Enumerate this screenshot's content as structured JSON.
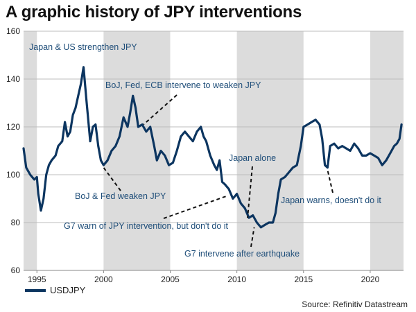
{
  "title": "A graphic history of JPY interventions",
  "source": "Source: Refinitiv Datastream",
  "colors": {
    "line": "#0c3560",
    "shade": "#dcdcdc",
    "annotation_text": "#1f4e79",
    "grid": "#bdbdbd"
  },
  "chart_data": {
    "type": "line",
    "title": "A graphic history of JPY interventions",
    "xlabel": "",
    "ylabel": "",
    "xlim": [
      1994.0,
      2022.5
    ],
    "ylim": [
      60,
      160
    ],
    "y_ticks": [
      60,
      80,
      100,
      120,
      140,
      160
    ],
    "x_ticks": [
      1995,
      2000,
      2005,
      2010,
      2015,
      2020
    ],
    "grid": "horizontal",
    "legend": "bottom-left",
    "shaded_periods": [
      [
        1994.0,
        1995.0
      ],
      [
        2000.0,
        2005.0
      ],
      [
        2010.0,
        2015.0
      ],
      [
        2020.0,
        2022.5
      ]
    ],
    "series": [
      {
        "name": "USDJPY",
        "x": [
          1994.0,
          1994.2,
          1994.5,
          1994.8,
          1995.0,
          1995.1,
          1995.3,
          1995.5,
          1995.7,
          1995.9,
          1996.1,
          1996.4,
          1996.6,
          1996.9,
          1997.1,
          1997.3,
          1997.5,
          1997.7,
          1997.9,
          1998.1,
          1998.3,
          1998.5,
          1998.7,
          1998.9,
          1999.0,
          1999.2,
          1999.4,
          1999.6,
          1999.8,
          2000.0,
          2000.3,
          2000.6,
          2000.9,
          2001.2,
          2001.5,
          2001.8,
          2002.0,
          2002.2,
          2002.4,
          2002.6,
          2002.9,
          2003.2,
          2003.5,
          2003.8,
          2004.0,
          2004.3,
          2004.6,
          2004.9,
          2005.2,
          2005.5,
          2005.8,
          2006.1,
          2006.4,
          2006.7,
          2007.0,
          2007.3,
          2007.5,
          2007.7,
          2008.0,
          2008.3,
          2008.5,
          2008.7,
          2008.9,
          2009.1,
          2009.4,
          2009.7,
          2010.0,
          2010.3,
          2010.6,
          2010.9,
          2011.2,
          2011.5,
          2011.8,
          2012.1,
          2012.4,
          2012.7,
          2012.9,
          2013.1,
          2013.3,
          2013.6,
          2013.9,
          2014.2,
          2014.5,
          2014.8,
          2015.0,
          2015.3,
          2015.6,
          2015.9,
          2016.2,
          2016.4,
          2016.6,
          2016.8,
          2017.0,
          2017.3,
          2017.6,
          2017.9,
          2018.2,
          2018.5,
          2018.8,
          2019.1,
          2019.4,
          2019.7,
          2020.0,
          2020.3,
          2020.6,
          2020.9,
          2021.2,
          2021.5,
          2021.8,
          2022.0,
          2022.2,
          2022.35
        ],
        "values": [
          111,
          103,
          100,
          98,
          99,
          92,
          85,
          90,
          100,
          104,
          106,
          108,
          112,
          114,
          122,
          116,
          118,
          125,
          128,
          133,
          138,
          145,
          132,
          120,
          114,
          120,
          121,
          112,
          106,
          104,
          106,
          110,
          112,
          116,
          124,
          120,
          126,
          133,
          128,
          120,
          121,
          118,
          120,
          112,
          106,
          110,
          108,
          104,
          105,
          110,
          116,
          118,
          116,
          114,
          118,
          120,
          116,
          114,
          108,
          104,
          102,
          106,
          97,
          96,
          94,
          90,
          92,
          88,
          86,
          82,
          83,
          80,
          78,
          79,
          80,
          80,
          84,
          92,
          98,
          99,
          101,
          103,
          104,
          112,
          120,
          121,
          122,
          123,
          121,
          115,
          104,
          103,
          112,
          113,
          111,
          112,
          111,
          110,
          113,
          111,
          108,
          108,
          109,
          108,
          107,
          104,
          106,
          109,
          112,
          113,
          115,
          121
        ]
      }
    ],
    "annotations": [
      {
        "text": "Japan & US strengthen JPY",
        "x": 1998.6,
        "y": 145
      },
      {
        "text": "BoJ, Fed, ECB intervene to weaken JPY",
        "x": 2003.0,
        "y": 121
      },
      {
        "text": "BoJ & Fed weaken JPY",
        "x": 2000.0,
        "y": 103
      },
      {
        "text": "G7 warn of JPY intervention, but don't do it",
        "x": 2009.2,
        "y": 91
      },
      {
        "text": "Japan alone",
        "x": 2010.8,
        "y": 82
      },
      {
        "text": "G7 intervene after earthquake",
        "x": 2011.3,
        "y": 78
      },
      {
        "text": "Japan warns, doesn't do it",
        "x": 2016.8,
        "y": 102
      }
    ]
  }
}
